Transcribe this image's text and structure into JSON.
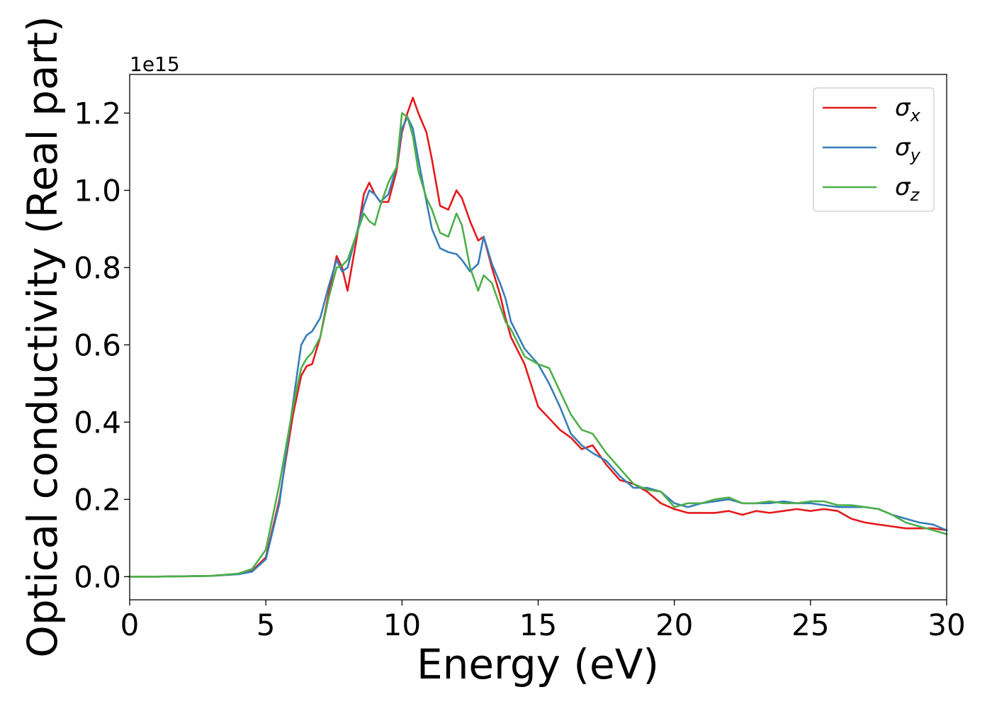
{
  "chart_data": {
    "type": "line",
    "title": "",
    "xlabel": "Energy (eV)",
    "ylabel": "Optical conductivity (Real part)",
    "y_offset_label": "1e15",
    "xlim": [
      0,
      30
    ],
    "ylim": [
      -0.06,
      1.3
    ],
    "x_ticks": [
      0,
      5,
      10,
      15,
      20,
      25,
      30
    ],
    "x_tick_labels": [
      "0",
      "5",
      "10",
      "15",
      "20",
      "25",
      "30"
    ],
    "y_ticks": [
      0.0,
      0.2,
      0.4,
      0.6,
      0.8,
      1.0,
      1.2
    ],
    "y_tick_labels": [
      "0.0",
      "0.2",
      "0.4",
      "0.6",
      "0.8",
      "1.0",
      "1.2"
    ],
    "grid": false,
    "legend_position": "top-right",
    "x": [
      0,
      1,
      2,
      3,
      4,
      4.5,
      5,
      5.5,
      6,
      6.3,
      6.5,
      6.7,
      7,
      7.3,
      7.6,
      7.8,
      8,
      8.3,
      8.6,
      8.8,
      9,
      9.2,
      9.5,
      9.8,
      10,
      10.2,
      10.4,
      10.6,
      10.9,
      11.1,
      11.4,
      11.7,
      12,
      12.2,
      12.5,
      12.8,
      13,
      13.3,
      13.6,
      13.8,
      14,
      14.5,
      15,
      15.4,
      15.8,
      16.2,
      16.6,
      17,
      17.5,
      18,
      18.5,
      19,
      19.5,
      20,
      20.5,
      21,
      21.5,
      22,
      22.5,
      23,
      23.5,
      24,
      24.5,
      25,
      25.5,
      26,
      26.5,
      27,
      27.5,
      28,
      28.5,
      29,
      29.5,
      30
    ],
    "series": [
      {
        "name": "σ_x",
        "color": "#e41a1c",
        "values": [
          0,
          0,
          0.001,
          0.002,
          0.007,
          0.015,
          0.05,
          0.2,
          0.42,
          0.52,
          0.545,
          0.55,
          0.62,
          0.73,
          0.83,
          0.8,
          0.74,
          0.86,
          0.99,
          1.02,
          0.99,
          0.97,
          0.97,
          1.05,
          1.15,
          1.2,
          1.24,
          1.2,
          1.15,
          1.08,
          0.96,
          0.95,
          1.0,
          0.98,
          0.92,
          0.87,
          0.88,
          0.8,
          0.73,
          0.67,
          0.62,
          0.55,
          0.44,
          0.41,
          0.38,
          0.36,
          0.33,
          0.34,
          0.29,
          0.25,
          0.24,
          0.22,
          0.19,
          0.175,
          0.165,
          0.165,
          0.165,
          0.17,
          0.16,
          0.17,
          0.165,
          0.17,
          0.175,
          0.17,
          0.175,
          0.17,
          0.15,
          0.14,
          0.135,
          0.13,
          0.125,
          0.125,
          0.125,
          0.12
        ]
      },
      {
        "name": "σ_y",
        "color": "#377eb8",
        "values": [
          0,
          0,
          0.001,
          0.002,
          0.006,
          0.013,
          0.045,
          0.19,
          0.45,
          0.6,
          0.625,
          0.635,
          0.67,
          0.75,
          0.82,
          0.79,
          0.8,
          0.88,
          0.96,
          1.0,
          0.99,
          0.97,
          0.99,
          1.06,
          1.16,
          1.19,
          1.16,
          1.08,
          0.97,
          0.9,
          0.85,
          0.84,
          0.835,
          0.82,
          0.79,
          0.81,
          0.88,
          0.81,
          0.76,
          0.72,
          0.66,
          0.59,
          0.55,
          0.5,
          0.44,
          0.37,
          0.34,
          0.32,
          0.3,
          0.26,
          0.23,
          0.23,
          0.22,
          0.19,
          0.18,
          0.19,
          0.195,
          0.2,
          0.19,
          0.19,
          0.19,
          0.195,
          0.19,
          0.19,
          0.185,
          0.18,
          0.18,
          0.18,
          0.175,
          0.16,
          0.15,
          0.14,
          0.135,
          0.12
        ]
      },
      {
        "name": "σ_z",
        "color": "#4daf4a",
        "values": [
          0,
          0,
          0.001,
          0.002,
          0.008,
          0.02,
          0.07,
          0.24,
          0.44,
          0.54,
          0.565,
          0.58,
          0.62,
          0.72,
          0.8,
          0.805,
          0.82,
          0.88,
          0.94,
          0.92,
          0.91,
          0.96,
          1.02,
          1.06,
          1.2,
          1.19,
          1.14,
          1.05,
          0.98,
          0.95,
          0.89,
          0.88,
          0.94,
          0.91,
          0.8,
          0.74,
          0.78,
          0.76,
          0.7,
          0.66,
          0.64,
          0.57,
          0.55,
          0.54,
          0.48,
          0.42,
          0.38,
          0.37,
          0.32,
          0.28,
          0.24,
          0.225,
          0.22,
          0.18,
          0.19,
          0.19,
          0.2,
          0.205,
          0.19,
          0.19,
          0.195,
          0.19,
          0.19,
          0.195,
          0.195,
          0.185,
          0.185,
          0.18,
          0.175,
          0.16,
          0.14,
          0.13,
          0.12,
          0.11
        ]
      }
    ]
  }
}
